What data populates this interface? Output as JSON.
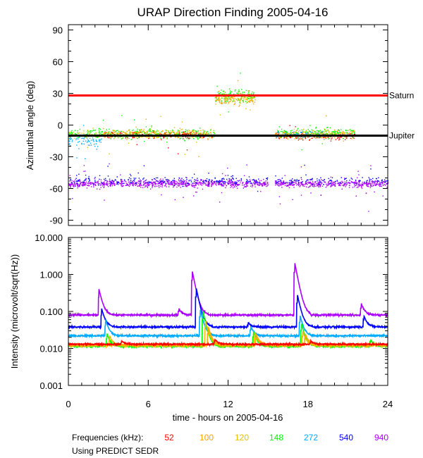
{
  "chart_data": {
    "title": "URAP Direction Finding  2005-04-16",
    "xlabel": "time - hours on 2005-04-16",
    "x_ticks": [
      0,
      6,
      12,
      18,
      24
    ],
    "xlim": [
      0,
      24
    ],
    "panels": [
      {
        "type": "scatter",
        "ylabel": "Azimuthal angle (deg)",
        "ylim": [
          -95,
          95
        ],
        "y_ticks": [
          90,
          60,
          30,
          0,
          -30,
          -60,
          -90
        ],
        "reference_lines": [
          {
            "name": "Saturn",
            "value": 28,
            "color": "#ff0000"
          },
          {
            "name": "Jupiter",
            "value": -10,
            "color": "#000000"
          }
        ],
        "clusters": [
          {
            "freq": "940",
            "t": [
              0,
              24
            ],
            "y": -55,
            "spread": 5,
            "density": 1.0,
            "gaps": [
              [
                15,
                15.5
              ]
            ]
          },
          {
            "freq": "540",
            "t": [
              0,
              24
            ],
            "y": -52,
            "spread": 6,
            "density": 0.25,
            "gaps": [
              [
                15,
                15.5
              ]
            ]
          },
          {
            "freq": "148",
            "t": [
              0,
              11
            ],
            "y": -8,
            "spread": 7,
            "density": 0.55
          },
          {
            "freq": "120",
            "t": [
              0,
              11
            ],
            "y": -8,
            "spread": 7,
            "density": 0.35
          },
          {
            "freq": "52",
            "t": [
              2.5,
              11
            ],
            "y": -9,
            "spread": 5,
            "density": 0.3
          },
          {
            "freq": "100",
            "t": [
              2.5,
              11
            ],
            "y": -8,
            "spread": 6,
            "density": 0.3
          },
          {
            "freq": "272",
            "t": [
              0,
              2.5
            ],
            "y": -15,
            "spread": 10,
            "density": 0.5
          },
          {
            "freq": "148",
            "t": [
              11,
              14
            ],
            "y": 28,
            "spread": 8,
            "density": 0.8
          },
          {
            "freq": "120",
            "t": [
              11,
              14
            ],
            "y": 26,
            "spread": 8,
            "density": 0.6
          },
          {
            "freq": "100",
            "t": [
              11,
              14
            ],
            "y": 25,
            "spread": 8,
            "density": 0.5
          },
          {
            "freq": "52",
            "t": [
              15.5,
              21.5
            ],
            "y": -10,
            "spread": 5,
            "density": 0.5
          },
          {
            "freq": "100",
            "t": [
              15.5,
              21.5
            ],
            "y": -8,
            "spread": 6,
            "density": 0.4
          },
          {
            "freq": "120",
            "t": [
              15.5,
              21.5
            ],
            "y": -8,
            "spread": 6,
            "density": 0.4
          },
          {
            "freq": "148",
            "t": [
              15.5,
              21.5
            ],
            "y": -7,
            "spread": 7,
            "density": 0.5
          },
          {
            "freq": "272",
            "t": [
              15.5,
              19.5
            ],
            "y": -8,
            "spread": 6,
            "density": 0.2
          }
        ]
      },
      {
        "type": "line",
        "ylabel": "Intensity (microvolt/sqrt(Hz))",
        "yscale": "log",
        "ylim": [
          0.001,
          10
        ],
        "y_ticks": [
          10,
          1,
          0.1,
          0.01,
          0.001
        ],
        "y_tick_labels": [
          "10.000",
          "1.000",
          "0.100",
          "0.010",
          "0.001"
        ],
        "series": [
          {
            "name": "940",
            "base": 0.08,
            "bursts": [
              [
                2.3,
                0.4
              ],
              [
                9.3,
                1.3
              ],
              [
                17,
                2.2
              ],
              [
                22,
                0.17
              ],
              [
                8.3,
                0.12
              ]
            ]
          },
          {
            "name": "540",
            "base": 0.038,
            "bursts": [
              [
                2.5,
                0.12
              ],
              [
                9.6,
                0.45
              ],
              [
                17.2,
                0.3
              ],
              [
                22.2,
                0.08
              ],
              [
                13.5,
                0.05
              ]
            ]
          },
          {
            "name": "272",
            "base": 0.022,
            "bursts": [
              [
                2.8,
                0.06
              ],
              [
                9.9,
                0.12
              ],
              [
                17.4,
                0.08
              ],
              [
                13.7,
                0.04
              ]
            ]
          },
          {
            "name": "148",
            "base": 0.0115,
            "bursts": [
              [
                2.9,
                0.025
              ],
              [
                10.1,
                0.11
              ],
              [
                13.9,
                0.03
              ],
              [
                17.5,
                0.05
              ],
              [
                22.7,
                0.018
              ]
            ]
          },
          {
            "name": "120",
            "base": 0.012,
            "bursts": [
              [
                3.1,
                0.022
              ],
              [
                10.3,
                0.06
              ],
              [
                14.0,
                0.028
              ],
              [
                17.6,
                0.03
              ]
            ]
          },
          {
            "name": "100",
            "base": 0.0125,
            "bursts": [
              [
                10.5,
                0.04
              ],
              [
                14.1,
                0.025
              ],
              [
                17.8,
                0.025
              ]
            ]
          },
          {
            "name": "52",
            "base": 0.013,
            "bursts": [
              [
                4.0,
                0.016
              ],
              [
                11,
                0.018
              ],
              [
                18.2,
                0.016
              ]
            ]
          }
        ]
      }
    ],
    "legend": {
      "label": "Frequencies (kHz):",
      "placement": "bottom",
      "items": [
        {
          "name": "52",
          "color": "#ff0000"
        },
        {
          "name": "100",
          "color": "#ffa500"
        },
        {
          "name": "120",
          "color": "#e8c000"
        },
        {
          "name": "148",
          "color": "#00ff00"
        },
        {
          "name": "272",
          "color": "#00aaff"
        },
        {
          "name": "540",
          "color": "#0000ff"
        },
        {
          "name": "940",
          "color": "#aa00ff"
        }
      ]
    },
    "footnote": "Using PREDICT SEDR"
  }
}
